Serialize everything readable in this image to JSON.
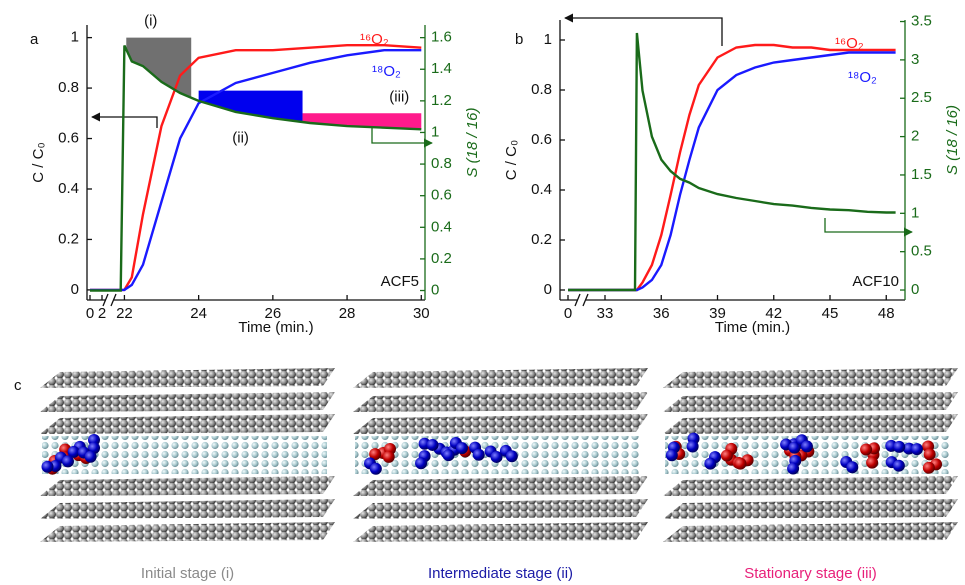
{
  "chart_data": [
    {
      "type": "line",
      "label": "a",
      "xlabel": "Time (min.)",
      "ylabel": "C / C₀",
      "y2label": "S (18 / 16)",
      "annotation": "ACF5",
      "x": [
        0,
        2,
        21.9,
        22,
        22.2,
        22.5,
        23,
        23.5,
        24,
        25,
        26,
        27,
        28,
        29,
        30
      ],
      "xlim": [
        -0.5,
        30.1
      ],
      "xbreak": [
        2.5,
        21.8
      ],
      "xticks": [
        0,
        2,
        22,
        24,
        26,
        28,
        30
      ],
      "ylim": [
        -0.04,
        1.05
      ],
      "yticks": [
        0,
        0.2,
        0.4,
        0.6,
        0.8,
        1
      ],
      "y2lim": [
        -0.06,
        1.68
      ],
      "y2ticks": [
        0,
        0.2,
        0.4,
        0.6,
        0.8,
        1,
        1.2,
        1.4,
        1.6
      ],
      "series": [
        {
          "name": "¹⁶O₂",
          "color": "#ff1a1a",
          "values": [
            0,
            0,
            0,
            0,
            0.05,
            0.3,
            0.65,
            0.85,
            0.92,
            0.95,
            0.95,
            0.96,
            0.97,
            0.97,
            0.96
          ]
        },
        {
          "name": "¹⁸O₂",
          "color": "#1a1aff",
          "values": [
            0,
            0,
            0,
            0,
            0.02,
            0.1,
            0.35,
            0.6,
            0.74,
            0.82,
            0.86,
            0.9,
            0.93,
            0.95,
            0.95
          ]
        },
        {
          "name": "S",
          "axis": "y2",
          "color": "#1a6b1a",
          "values": [
            0,
            0,
            0,
            1.55,
            1.45,
            1.42,
            1.32,
            1.25,
            1.2,
            1.13,
            1.09,
            1.06,
            1.04,
            1.03,
            1.02
          ]
        }
      ],
      "regions": [
        {
          "label": "(i)",
          "x": [
            22.05,
            23.8
          ],
          "y": 1.0,
          "color": "#707070",
          "label_pos": "above"
        },
        {
          "label": "(ii)",
          "x": [
            24,
            26.8
          ],
          "y": 0.79,
          "color": "#0000ee",
          "label_pos": "below"
        },
        {
          "label": "(iii)",
          "x": [
            26.8,
            30
          ],
          "y": 0.7,
          "color": "#ff1a8c",
          "label_pos": "above"
        }
      ]
    },
    {
      "type": "line",
      "label": "b",
      "xlabel": "Time (min.)",
      "ylabel": "C / C₀",
      "y2label": "S (18 / 16)",
      "annotation": "ACF10",
      "x": [
        0,
        33,
        34.6,
        34.7,
        35,
        35.5,
        36,
        36.5,
        37,
        37.5,
        38,
        39,
        40,
        41,
        42,
        43,
        44,
        45,
        46,
        47,
        48,
        48.5
      ],
      "xlim": [
        -1.5,
        49
      ],
      "xbreak": [
        1.5,
        32.2
      ],
      "xticks": [
        0,
        33,
        36,
        39,
        42,
        45,
        48
      ],
      "ylim": [
        -0.04,
        1.08
      ],
      "yticks": [
        0,
        0.2,
        0.4,
        0.6,
        0.8,
        1
      ],
      "y2lim": [
        -0.13,
        3.52
      ],
      "y2ticks": [
        0,
        0.5,
        1,
        1.5,
        2,
        2.5,
        3,
        3.5
      ],
      "series": [
        {
          "name": "¹⁶O₂",
          "color": "#ff1a1a",
          "values": [
            0,
            0,
            0,
            0,
            0.03,
            0.1,
            0.22,
            0.38,
            0.55,
            0.7,
            0.82,
            0.93,
            0.97,
            0.98,
            0.98,
            0.97,
            0.97,
            0.96,
            0.96,
            0.96,
            0.96,
            0.96
          ]
        },
        {
          "name": "¹⁸O₂",
          "color": "#1a1aff",
          "values": [
            0,
            0,
            0,
            0,
            0.01,
            0.04,
            0.1,
            0.22,
            0.38,
            0.52,
            0.65,
            0.8,
            0.86,
            0.89,
            0.91,
            0.92,
            0.93,
            0.94,
            0.95,
            0.95,
            0.95,
            0.95
          ]
        },
        {
          "name": "S",
          "axis": "y2",
          "color": "#1a6b1a",
          "values": [
            0,
            0,
            0,
            3.35,
            2.6,
            2.0,
            1.7,
            1.55,
            1.45,
            1.4,
            1.33,
            1.25,
            1.2,
            1.16,
            1.12,
            1.1,
            1.07,
            1.05,
            1.04,
            1.02,
            1.01,
            1.01
          ]
        }
      ]
    }
  ],
  "figure_c": {
    "label": "c",
    "captions": [
      {
        "text": "Initial stage (i)",
        "color": "#8a8a8a"
      },
      {
        "text": "Intermediate stage (ii)",
        "color": "#1a1aa6"
      },
      {
        "text": "Stationary stage (iii)",
        "color": "#e8207a"
      }
    ]
  }
}
